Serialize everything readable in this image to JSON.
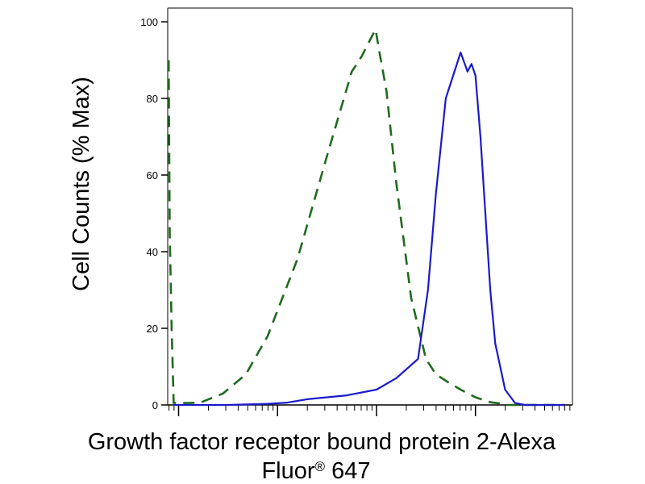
{
  "chart_data": {
    "type": "line",
    "title": "",
    "ylabel": "Cell Counts (% Max)",
    "xlabel_line1": "Growth factor receptor bound protein 2-Alexa",
    "xlabel_line2_main": "Fluor",
    "xlabel_line2_sup": "®",
    "xlabel_line2_tail": " 647",
    "x_scale": "log",
    "xlim": [
      -0.11,
      3.98
    ],
    "ylim": [
      0,
      100
    ],
    "y_ticks": [
      0,
      20,
      40,
      60,
      80,
      100
    ],
    "y_tick_labels": [
      "0",
      "20",
      "40",
      "60",
      "80",
      "100"
    ],
    "grid": false,
    "legend": "none",
    "series": [
      {
        "style": "dashed",
        "color": "#1e6b1e",
        "x": [
          -0.1,
          -0.09,
          -0.07,
          -0.05,
          0.1,
          0.22,
          0.45,
          0.68,
          0.9,
          1.2,
          1.5,
          1.75,
          1.85,
          1.95,
          1.99,
          2.03,
          2.1,
          2.2,
          2.35,
          2.5,
          2.6,
          2.72,
          2.85,
          3.0,
          3.15,
          3.25,
          3.3,
          3.5,
          3.9
        ],
        "y": [
          90,
          45,
          20,
          0.5,
          0.5,
          0.6,
          3,
          8,
          18,
          38,
          65,
          87,
          91,
          96,
          98,
          92,
          82,
          58,
          28,
          12,
          8,
          6,
          4,
          2,
          0.7,
          0.4,
          0,
          0,
          0
        ]
      },
      {
        "style": "solid",
        "color": "#1a1acc",
        "x": [
          -0.05,
          0.5,
          0.9,
          1.1,
          1.3,
          1.7,
          2.0,
          2.2,
          2.42,
          2.52,
          2.6,
          2.7,
          2.8,
          2.85,
          2.92,
          2.96,
          3.0,
          3.05,
          3.1,
          3.15,
          3.2,
          3.3,
          3.4,
          3.5,
          3.9
        ],
        "y": [
          0,
          0,
          0.3,
          0.6,
          1.5,
          2.5,
          4,
          7,
          12,
          30,
          55,
          80,
          88,
          92,
          87,
          89,
          86,
          70,
          50,
          30,
          16,
          4,
          0.5,
          0,
          0
        ]
      }
    ]
  }
}
